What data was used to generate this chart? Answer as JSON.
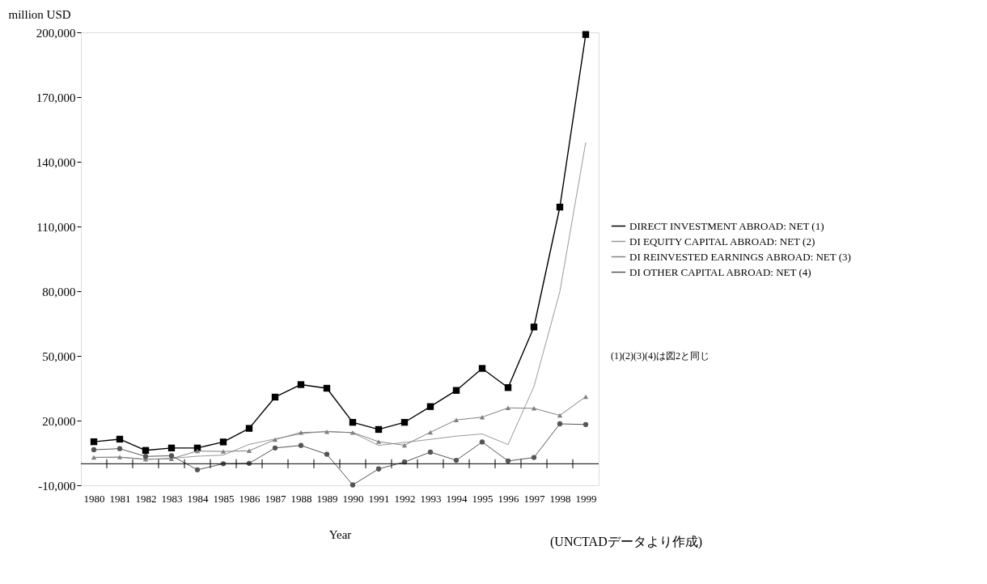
{
  "chart_data": {
    "type": "line",
    "ylabel": "million USD",
    "xlabel": "Year",
    "categories": [
      "1980",
      "1981",
      "1982",
      "1983",
      "1984",
      "1985",
      "1986",
      "1987",
      "1988",
      "1989",
      "1990",
      "1991",
      "1992",
      "1993",
      "1994",
      "1995",
      "1996",
      "1997",
      "1998",
      "1999"
    ],
    "series": [
      {
        "name": "DIRECT INVESTMENT ABROAD: NET (1)",
        "color": "#000000",
        "marker": "square",
        "values": [
          10200,
          11400,
          6200,
          7300,
          7300,
          10100,
          16400,
          30900,
          36700,
          35000,
          19200,
          15900,
          19200,
          26500,
          34000,
          44200,
          35300,
          63400,
          119000,
          199000
        ]
      },
      {
        "name": "DI EQUITY CAPITAL ABROAD: NET (2)",
        "color": "#999999",
        "marker": "none",
        "values": [
          3000,
          3000,
          2000,
          2500,
          3500,
          4000,
          9000,
          11500,
          13900,
          15100,
          14300,
          8500,
          9900,
          11300,
          12800,
          13800,
          8900,
          35800,
          79800,
          149000
        ]
      },
      {
        "name": "DI REINVESTED EARNINGS ABROAD: NET (3)",
        "color": "#808080",
        "marker": "triangle",
        "values": [
          2900,
          3100,
          2100,
          2300,
          5900,
          5700,
          6000,
          11200,
          14500,
          14800,
          14500,
          10200,
          8600,
          14600,
          20300,
          21600,
          25900,
          25700,
          22400,
          31100
        ]
      },
      {
        "name": "DI OTHER CAPITAL ABROAD: NET (4)",
        "color": "#555555",
        "marker": "circle",
        "values": [
          6500,
          7000,
          3400,
          3700,
          -2800,
          0,
          200,
          7300,
          8500,
          4400,
          -9800,
          -2400,
          800,
          5400,
          1600,
          10100,
          1300,
          2900,
          18500,
          18200
        ]
      }
    ],
    "ylim": [
      -10000,
      200000
    ],
    "yticks": [
      {
        "value": -10000,
        "label": "-10,000"
      },
      {
        "value": 20000,
        "label": "20,000"
      },
      {
        "value": 50000,
        "label": "50,000"
      },
      {
        "value": 80000,
        "label": "80,000"
      },
      {
        "value": 110000,
        "label": "110,000"
      },
      {
        "value": 140000,
        "label": "140,000"
      },
      {
        "value": 170000,
        "label": "170,000"
      },
      {
        "value": 200000,
        "label": "200,000"
      }
    ],
    "ref_lines": [
      {
        "axis": "y",
        "value": 0
      }
    ],
    "grid": false,
    "legend": "right",
    "annotations": [
      "(1)(2)(3)(4)は図2と同じ",
      "(UNCTADデータより作成)"
    ]
  }
}
